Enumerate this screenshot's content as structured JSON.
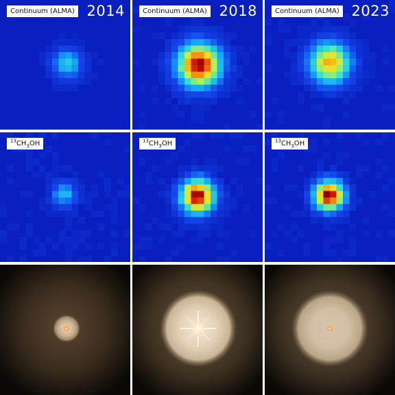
{
  "figure": {
    "columns": [
      {
        "year": "2014"
      },
      {
        "year": "2018"
      },
      {
        "year": "2023"
      }
    ],
    "rows": [
      {
        "label": "Continuum (ALMA)"
      },
      {
        "label_prefix": "13",
        "label_mid": "CH",
        "label_sub": "3",
        "label_suffix": "OH"
      },
      {
        "label": ""
      }
    ]
  },
  "colors": {
    "map_background": "#0a1fbf",
    "map_peak": "#8c0000",
    "optical_background": "#0b0906",
    "optical_glow": "#e8d6bb"
  },
  "panels": [
    {
      "id": "continuum-2014",
      "row": "continuum",
      "year": "2014",
      "peak_intensity": 0.42
    },
    {
      "id": "continuum-2018",
      "row": "continuum",
      "year": "2018",
      "peak_intensity": 1.0
    },
    {
      "id": "continuum-2023",
      "row": "continuum",
      "year": "2023",
      "peak_intensity": 0.78
    },
    {
      "id": "methanol-2014",
      "row": "13CH3OH",
      "year": "2014",
      "peak_intensity": 0.38
    },
    {
      "id": "methanol-2018",
      "row": "13CH3OH",
      "year": "2018",
      "peak_intensity": 1.0
    },
    {
      "id": "methanol-2023",
      "row": "13CH3OH",
      "year": "2023",
      "peak_intensity": 1.0
    },
    {
      "id": "optical-2014",
      "row": "optical",
      "year": "2014"
    },
    {
      "id": "optical-2018",
      "row": "optical",
      "year": "2018"
    },
    {
      "id": "optical-2023",
      "row": "optical",
      "year": "2023"
    }
  ]
}
